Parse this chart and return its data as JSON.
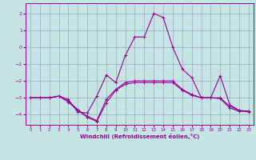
{
  "xlabel": "Windchill (Refroidissement éolien,°C)",
  "bg_color": "#c5e5e5",
  "line_color": "#990099",
  "grid_color": "#9999bb",
  "xlim": [
    -0.5,
    23.5
  ],
  "ylim": [
    -4.6,
    2.6
  ],
  "xticks": [
    0,
    1,
    2,
    3,
    4,
    5,
    6,
    7,
    8,
    9,
    10,
    11,
    12,
    13,
    14,
    15,
    16,
    17,
    18,
    19,
    20,
    21,
    22,
    23
  ],
  "yticks": [
    -4,
    -3,
    -2,
    -1,
    0,
    1,
    2
  ],
  "lines": [
    {
      "x": [
        0,
        1,
        2,
        3,
        4,
        5,
        6,
        7,
        8,
        9,
        10,
        11,
        12,
        13,
        14,
        15,
        16,
        17,
        18,
        19,
        20,
        21,
        22,
        23
      ],
      "y": [
        -3.0,
        -3.0,
        -3.0,
        -2.9,
        -3.1,
        -3.85,
        -3.9,
        -2.9,
        -1.65,
        -2.1,
        -0.5,
        0.6,
        0.6,
        2.0,
        1.75,
        0.0,
        -1.3,
        -1.8,
        -3.0,
        -3.0,
        -1.7,
        -3.4,
        -3.75,
        -3.8
      ]
    },
    {
      "x": [
        0,
        1,
        2,
        3,
        4,
        5,
        6,
        7,
        8,
        9,
        10,
        11,
        12,
        13,
        14,
        15,
        16,
        17,
        18,
        19,
        20,
        21,
        22,
        23
      ],
      "y": [
        -3.0,
        -3.0,
        -3.0,
        -2.9,
        -3.2,
        -3.7,
        -4.1,
        -4.35,
        -3.1,
        -2.5,
        -2.1,
        -2.0,
        -2.0,
        -2.0,
        -2.0,
        -2.0,
        -2.5,
        -2.8,
        -3.0,
        -3.0,
        -3.0,
        -3.5,
        -3.75,
        -3.8
      ]
    },
    {
      "x": [
        0,
        1,
        2,
        3,
        4,
        5,
        6,
        7,
        8,
        9,
        10,
        11,
        12,
        13,
        14,
        15,
        16,
        17,
        18,
        19,
        20,
        21,
        22,
        23
      ],
      "y": [
        -3.0,
        -3.0,
        -3.0,
        -2.9,
        -3.25,
        -3.75,
        -4.15,
        -4.4,
        -3.3,
        -2.55,
        -2.2,
        -2.1,
        -2.1,
        -2.1,
        -2.1,
        -2.1,
        -2.55,
        -2.85,
        -3.0,
        -3.0,
        -3.05,
        -3.6,
        -3.8,
        -3.82
      ]
    }
  ]
}
